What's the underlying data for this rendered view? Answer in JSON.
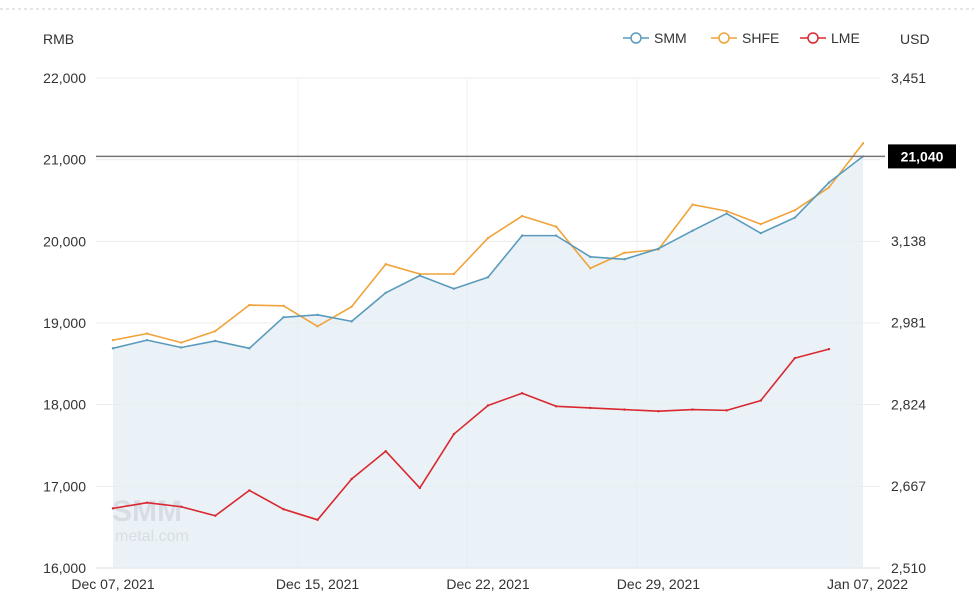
{
  "chart_data": {
    "type": "line",
    "y_unit_left": "RMB",
    "y_unit_right": "USD",
    "ylim_left": [
      16000,
      22000
    ],
    "ylim_right": [
      2510,
      3451
    ],
    "yticks_left": [
      "16,000",
      "17,000",
      "18,000",
      "19,000",
      "20,000",
      "21,000",
      "22,000"
    ],
    "yticks_right": [
      "2,510",
      "2,667",
      "2,824",
      "2,981",
      "3,138",
      "3,451"
    ],
    "x_tick_labels": [
      "Dec 07, 2021",
      "Dec 15, 2021",
      "Dec 22, 2021",
      "Dec 29, 2021",
      "Jan 07, 2022"
    ],
    "x": [
      "Dec 07, 2021",
      "Dec 08, 2021",
      "Dec 09, 2021",
      "Dec 10, 2021",
      "Dec 13, 2021",
      "Dec 14, 2021",
      "Dec 15, 2021",
      "Dec 16, 2021",
      "Dec 17, 2021",
      "Dec 20, 2021",
      "Dec 21, 2021",
      "Dec 22, 2021",
      "Dec 23, 2021",
      "Dec 24, 2021",
      "Dec 27, 2021",
      "Dec 28, 2021",
      "Dec 29, 2021",
      "Dec 30, 2021",
      "Dec 31, 2021",
      "Jan 04, 2022",
      "Jan 05, 2022",
      "Jan 06, 2022",
      "Jan 07, 2022"
    ],
    "series": [
      {
        "name": "SMM",
        "color": "#5a9bbd",
        "axis": "left",
        "area": true,
        "values": [
          18690,
          18790,
          18700,
          18780,
          18690,
          19070,
          19100,
          19020,
          19370,
          19580,
          19420,
          19560,
          20070,
          20070,
          19810,
          19780,
          19910,
          20130,
          20340,
          20100,
          20290,
          20720,
          21040
        ]
      },
      {
        "name": "SHFE",
        "color": "#f0a33a",
        "axis": "left",
        "values": [
          18790,
          18870,
          18760,
          18900,
          19220,
          19210,
          18960,
          19200,
          19720,
          19600,
          19600,
          20040,
          20310,
          20180,
          19670,
          19860,
          19900,
          20450,
          20370,
          20210,
          20380,
          20660,
          21200
        ]
      },
      {
        "name": "LME",
        "color": "#d9282f",
        "axis": "left",
        "values": [
          16730,
          16800,
          16750,
          16640,
          16950,
          16720,
          16590,
          17090,
          17430,
          16980,
          17640,
          17990,
          18140,
          17980,
          17960,
          17940,
          17920,
          17940,
          17930,
          18050,
          18570,
          18680,
          null
        ]
      }
    ],
    "reference_line": {
      "value": 21040,
      "label": "21,040",
      "color": "#777777"
    },
    "legend_position": "top-right",
    "grid": true
  },
  "watermark": {
    "brand": "SMM",
    "sub": "metal.com"
  }
}
